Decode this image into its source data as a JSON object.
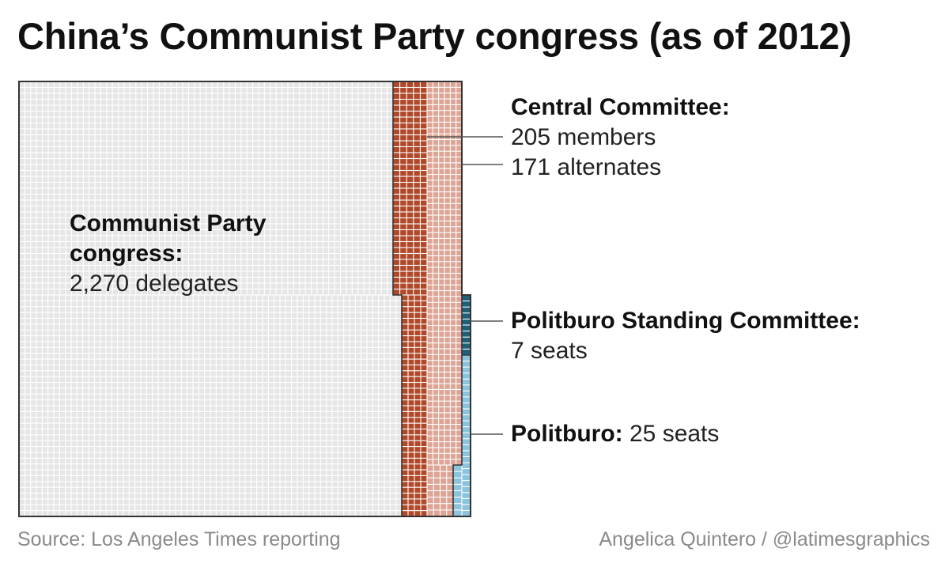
{
  "title": "China’s Communist Party congress (as of 2012)",
  "colors": {
    "congress": "#e6e6e6",
    "central_members": "#b0492a",
    "central_alternates": "#dca595",
    "standing_committee": "#1f5f78",
    "politburo": "#8cc3dd",
    "outline": "#333333",
    "leader": "#555555"
  },
  "chart_data": {
    "type": "waffle",
    "unit": "1 square = 1 seat",
    "series": [
      {
        "name": "Communist Party congress:",
        "detail": "2,270 delegates",
        "value": 2270
      },
      {
        "name": "Central Committee:",
        "detail": "205 members",
        "value": 205
      },
      {
        "name": "Central Committee:",
        "detail": "171 alternates",
        "value": 171
      },
      {
        "name": "Politburo Standing Committee:",
        "detail": "7 seats",
        "value": 7
      },
      {
        "name": "Politburo:",
        "detail": "25 seats",
        "value": 25
      }
    ],
    "labels": {
      "congress_title": "Communist Party",
      "congress_title2": "congress:",
      "congress_value": "2,270 delegates",
      "central_title": "Central Committee:",
      "central_members": "205 members",
      "central_alternates": "171 alternates",
      "standing_title": "Politburo Standing Committee:",
      "standing_value": "7 seats",
      "politburo_title": "Politburo:",
      "politburo_value": "25 seats"
    }
  },
  "footer": {
    "source": "Source: Los Angeles Times reporting",
    "credit": "Angelica Quintero / @latimesgraphics"
  }
}
